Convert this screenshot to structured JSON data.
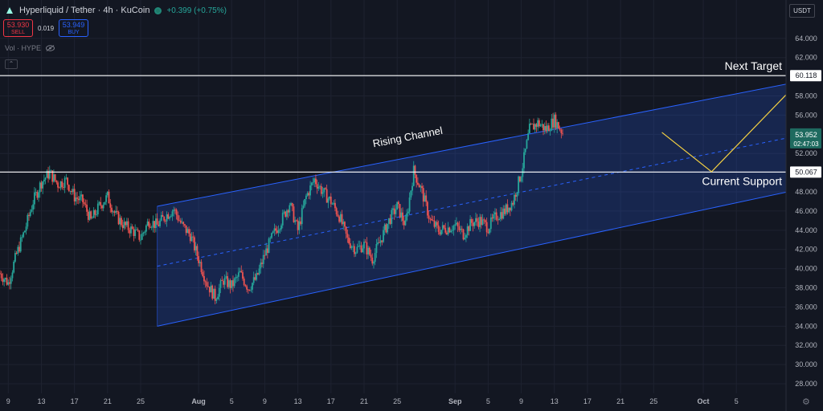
{
  "header": {
    "title": "Hyperliquid / Tether · 4h · KuCoin",
    "change": "+0.399 (+0.75%)"
  },
  "trade": {
    "sell_price": "53.930",
    "sell_label": "SELL",
    "spread": "0.019",
    "buy_price": "53.949",
    "buy_label": "BUY"
  },
  "volume_label": "Vol · HYPE",
  "currency": "USDT",
  "colors": {
    "bg": "#131722",
    "up": "#26a69a",
    "down": "#ef5350",
    "channel": "#2962ff",
    "projection": "#f5d142",
    "hline": "#ffffff"
  },
  "chart_data": {
    "type": "candlestick",
    "interval": "4h",
    "x_range_days": [
      0,
      95
    ],
    "x_start_date": "2024-07-08",
    "ylim": [
      27,
      68
    ],
    "y_ticks": [
      "28.000",
      "30.000",
      "32.000",
      "34.000",
      "36.000",
      "38.000",
      "40.000",
      "42.000",
      "44.000",
      "46.000",
      "48.000",
      "50.000",
      "52.000",
      "54.000",
      "56.000",
      "58.000",
      "60.000",
      "62.000",
      "64.000"
    ],
    "x_ticks": [
      {
        "label": "9",
        "day": 1
      },
      {
        "label": "13",
        "day": 5
      },
      {
        "label": "17",
        "day": 9
      },
      {
        "label": "21",
        "day": 13
      },
      {
        "label": "25",
        "day": 17
      },
      {
        "label": "Aug",
        "day": 24
      },
      {
        "label": "5",
        "day": 28
      },
      {
        "label": "9",
        "day": 32
      },
      {
        "label": "13",
        "day": 36
      },
      {
        "label": "17",
        "day": 40
      },
      {
        "label": "21",
        "day": 44
      },
      {
        "label": "25",
        "day": 48
      },
      {
        "label": "Sep",
        "day": 55
      },
      {
        "label": "5",
        "day": 59
      },
      {
        "label": "9",
        "day": 63
      },
      {
        "label": "13",
        "day": 67
      },
      {
        "label": "17",
        "day": 71
      },
      {
        "label": "21",
        "day": 75
      },
      {
        "label": "25",
        "day": 79
      },
      {
        "label": "Oct",
        "day": 85
      },
      {
        "label": "5",
        "day": 89
      }
    ],
    "close_path": [
      [
        0,
        39.5
      ],
      [
        1,
        38.5
      ],
      [
        2,
        41.5
      ],
      [
        3,
        44
      ],
      [
        4,
        47
      ],
      [
        5,
        49
      ],
      [
        6,
        50
      ],
      [
        7,
        48.8
      ],
      [
        8,
        49.2
      ],
      [
        9,
        47.5
      ],
      [
        10,
        47
      ],
      [
        11,
        45
      ],
      [
        12,
        46.5
      ],
      [
        13,
        47.5
      ],
      [
        14,
        45.5
      ],
      [
        15,
        44.5
      ],
      [
        16,
        44
      ],
      [
        17,
        43.2
      ],
      [
        18,
        45
      ],
      [
        19,
        44.5
      ],
      [
        20,
        45.5
      ],
      [
        21,
        46.2
      ],
      [
        22,
        44.5
      ],
      [
        23,
        43.5
      ],
      [
        24,
        41
      ],
      [
        25,
        38.5
      ],
      [
        26,
        37
      ],
      [
        27,
        38.8
      ],
      [
        28,
        38.2
      ],
      [
        29,
        39.5
      ],
      [
        30,
        38
      ],
      [
        31,
        39
      ],
      [
        32,
        41.5
      ],
      [
        33,
        43.5
      ],
      [
        34,
        45
      ],
      [
        35,
        46.8
      ],
      [
        36,
        44
      ],
      [
        37,
        47.5
      ],
      [
        38,
        49.3
      ],
      [
        39,
        48
      ],
      [
        40,
        47
      ],
      [
        41,
        45.5
      ],
      [
        42,
        43
      ],
      [
        43,
        42
      ],
      [
        44,
        42.5
      ],
      [
        45,
        41
      ],
      [
        46,
        43
      ],
      [
        47,
        45
      ],
      [
        48,
        46.5
      ],
      [
        49,
        44.5
      ],
      [
        50,
        50.2
      ],
      [
        51,
        48
      ],
      [
        52,
        45
      ],
      [
        53,
        44
      ],
      [
        54,
        44.2
      ],
      [
        55,
        44.5
      ],
      [
        56,
        43.6
      ],
      [
        57,
        44.8
      ],
      [
        58,
        45
      ],
      [
        59,
        44.3
      ],
      [
        60,
        45.5
      ],
      [
        61,
        46
      ],
      [
        62,
        47
      ],
      [
        63,
        50
      ],
      [
        64,
        54.5
      ],
      [
        65,
        55.2
      ],
      [
        66,
        54.5
      ],
      [
        67,
        55.5
      ],
      [
        68,
        54.2
      ]
    ],
    "annotations": {
      "next_target": {
        "label": "Next Target",
        "price": "60.118",
        "y": 60.118
      },
      "current_support": {
        "label": "Current Support",
        "price": "50.067",
        "y": 50.067
      },
      "current_price": {
        "price": "53.952",
        "countdown": "02:47:03",
        "y": 53.952
      },
      "channel": {
        "label": "Rising Channel",
        "upper": [
          [
            19,
            46.5
          ],
          [
            99,
            59.9
          ]
        ],
        "lower": [
          [
            19,
            34
          ],
          [
            99,
            48.7
          ]
        ],
        "mid": [
          [
            19,
            40.25
          ],
          [
            99,
            54.3
          ]
        ]
      },
      "projection": [
        [
          80,
          54.2
        ],
        [
          86,
          50.1
        ],
        [
          97,
          59.9
        ]
      ]
    }
  }
}
